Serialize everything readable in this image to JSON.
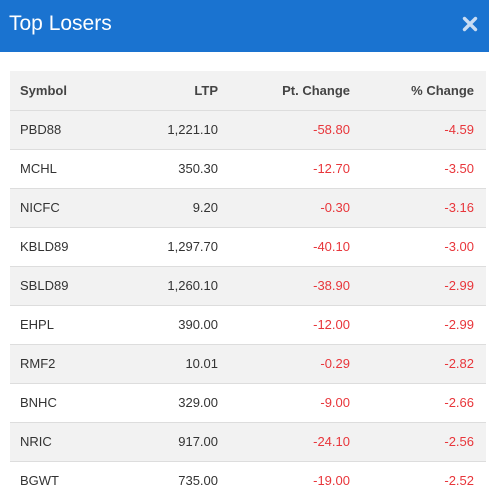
{
  "title": "Top Losers",
  "colors": {
    "header_bg": "#1a73d0",
    "negative": "#e8363b"
  },
  "columns": {
    "symbol": "Symbol",
    "ltp": "LTP",
    "pt_change": "Pt. Change",
    "pct_change": "% Change"
  },
  "rows": [
    {
      "symbol": "PBD88",
      "ltp": "1,221.10",
      "pt_change": "-58.80",
      "pct_change": "-4.59"
    },
    {
      "symbol": "MCHL",
      "ltp": "350.30",
      "pt_change": "-12.70",
      "pct_change": "-3.50"
    },
    {
      "symbol": "NICFC",
      "ltp": "9.20",
      "pt_change": "-0.30",
      "pct_change": "-3.16"
    },
    {
      "symbol": "KBLD89",
      "ltp": "1,297.70",
      "pt_change": "-40.10",
      "pct_change": "-3.00"
    },
    {
      "symbol": "SBLD89",
      "ltp": "1,260.10",
      "pt_change": "-38.90",
      "pct_change": "-2.99"
    },
    {
      "symbol": "EHPL",
      "ltp": "390.00",
      "pt_change": "-12.00",
      "pct_change": "-2.99"
    },
    {
      "symbol": "RMF2",
      "ltp": "10.01",
      "pt_change": "-0.29",
      "pct_change": "-2.82"
    },
    {
      "symbol": "BNHC",
      "ltp": "329.00",
      "pt_change": "-9.00",
      "pct_change": "-2.66"
    },
    {
      "symbol": "NRIC",
      "ltp": "917.00",
      "pt_change": "-24.10",
      "pct_change": "-2.56"
    },
    {
      "symbol": "BGWT",
      "ltp": "735.00",
      "pt_change": "-19.00",
      "pct_change": "-2.52"
    }
  ]
}
